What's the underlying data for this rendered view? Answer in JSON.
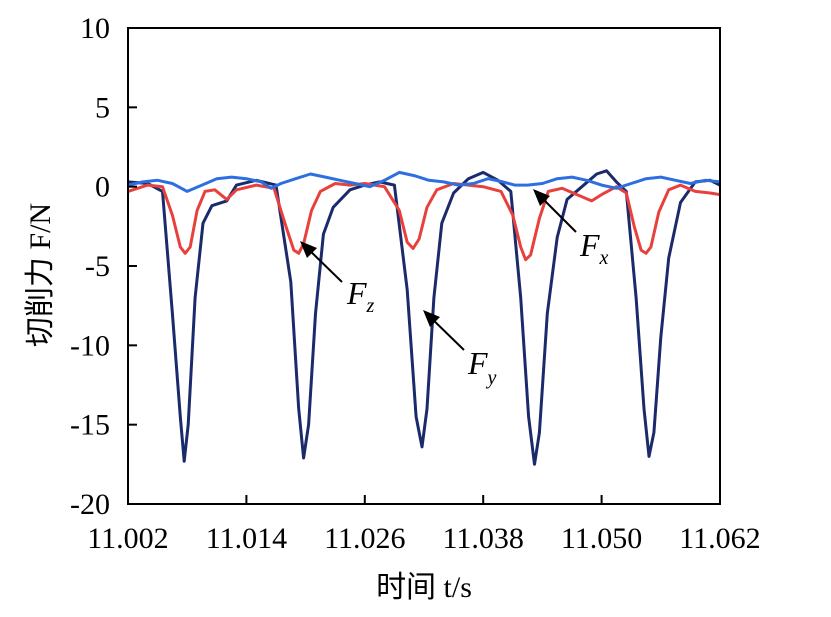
{
  "chart_data": {
    "type": "line",
    "xlabel": "时间 t/s",
    "ylabel": "切削力 F/N",
    "xlim": [
      11.002,
      11.062
    ],
    "ylim": [
      -20,
      10
    ],
    "x_ticks": [
      "11.002",
      "11.014",
      "11.026",
      "11.038",
      "11.050",
      "11.062"
    ],
    "y_ticks": [
      "10",
      "5",
      "0",
      "-5",
      "-10",
      "-15",
      "-20"
    ],
    "grid": false,
    "legend": "none",
    "series": [
      {
        "name": "Fy",
        "color": "#1b2a6b",
        "points": [
          [
            11.002,
            0.3
          ],
          [
            11.004,
            0.2
          ],
          [
            11.0055,
            -0.3
          ],
          [
            11.0065,
            -8.0
          ],
          [
            11.0073,
            -14.5
          ],
          [
            11.0077,
            -17.3
          ],
          [
            11.0081,
            -15.0
          ],
          [
            11.0088,
            -7.0
          ],
          [
            11.0096,
            -2.3
          ],
          [
            11.0105,
            -1.2
          ],
          [
            11.012,
            -0.9
          ],
          [
            11.013,
            0.1
          ],
          [
            11.015,
            0.4
          ],
          [
            11.017,
            0.1
          ],
          [
            11.0185,
            -6.0
          ],
          [
            11.0193,
            -14.0
          ],
          [
            11.0198,
            -17.1
          ],
          [
            11.0203,
            -15.0
          ],
          [
            11.021,
            -8.0
          ],
          [
            11.0218,
            -3.0
          ],
          [
            11.0228,
            -1.3
          ],
          [
            11.0245,
            -0.2
          ],
          [
            11.026,
            0.1
          ],
          [
            11.0275,
            0.3
          ],
          [
            11.029,
            0.1
          ],
          [
            11.0303,
            -6.5
          ],
          [
            11.0312,
            -14.5
          ],
          [
            11.0318,
            -16.4
          ],
          [
            11.0323,
            -14.0
          ],
          [
            11.033,
            -7.0
          ],
          [
            11.0338,
            -2.3
          ],
          [
            11.035,
            -0.4
          ],
          [
            11.0365,
            0.5
          ],
          [
            11.038,
            0.9
          ],
          [
            11.0395,
            0.4
          ],
          [
            11.0408,
            -0.3
          ],
          [
            11.0418,
            -7.0
          ],
          [
            11.0426,
            -14.5
          ],
          [
            11.0432,
            -17.5
          ],
          [
            11.0437,
            -15.5
          ],
          [
            11.0445,
            -8.0
          ],
          [
            11.0455,
            -3.2
          ],
          [
            11.0465,
            -0.8
          ],
          [
            11.048,
            0.0
          ],
          [
            11.0495,
            0.8
          ],
          [
            11.0505,
            1.0
          ],
          [
            11.0515,
            0.3
          ],
          [
            11.0525,
            -0.3
          ],
          [
            11.0535,
            -7.0
          ],
          [
            11.0543,
            -14.0
          ],
          [
            11.0548,
            -17.0
          ],
          [
            11.0553,
            -15.5
          ],
          [
            11.056,
            -9.5
          ],
          [
            11.0568,
            -4.5
          ],
          [
            11.058,
            -1.0
          ],
          [
            11.0595,
            0.3
          ],
          [
            11.061,
            0.4
          ],
          [
            11.062,
            0.1
          ]
        ]
      },
      {
        "name": "Fz",
        "color": "#e8413d",
        "points": [
          [
            11.002,
            -0.3
          ],
          [
            11.004,
            0.1
          ],
          [
            11.0055,
            0.0
          ],
          [
            11.0065,
            -1.8
          ],
          [
            11.0073,
            -3.8
          ],
          [
            11.0078,
            -4.2
          ],
          [
            11.0083,
            -3.8
          ],
          [
            11.009,
            -1.5
          ],
          [
            11.0098,
            -0.3
          ],
          [
            11.0108,
            -0.2
          ],
          [
            11.012,
            -0.8
          ],
          [
            11.013,
            -0.2
          ],
          [
            11.015,
            0.1
          ],
          [
            11.0168,
            -0.1
          ],
          [
            11.018,
            -2.5
          ],
          [
            11.0188,
            -4.0
          ],
          [
            11.0193,
            -4.2
          ],
          [
            11.0198,
            -3.6
          ],
          [
            11.0206,
            -1.5
          ],
          [
            11.0215,
            -0.3
          ],
          [
            11.023,
            0.2
          ],
          [
            11.0245,
            0.1
          ],
          [
            11.026,
            0.2
          ],
          [
            11.028,
            0.0
          ],
          [
            11.0295,
            -1.5
          ],
          [
            11.0303,
            -3.5
          ],
          [
            11.0309,
            -3.9
          ],
          [
            11.0315,
            -3.3
          ],
          [
            11.0323,
            -1.3
          ],
          [
            11.0333,
            -0.2
          ],
          [
            11.035,
            0.2
          ],
          [
            11.0365,
            0.1
          ],
          [
            11.038,
            0.0
          ],
          [
            11.0398,
            -0.3
          ],
          [
            11.041,
            -1.8
          ],
          [
            11.0418,
            -3.8
          ],
          [
            11.0423,
            -4.6
          ],
          [
            11.0428,
            -4.3
          ],
          [
            11.0437,
            -2.0
          ],
          [
            11.0446,
            -0.3
          ],
          [
            11.046,
            -0.1
          ],
          [
            11.0475,
            -0.5
          ],
          [
            11.049,
            -0.9
          ],
          [
            11.05,
            -0.5
          ],
          [
            11.0515,
            0.0
          ],
          [
            11.0525,
            -0.4
          ],
          [
            11.0533,
            -2.5
          ],
          [
            11.054,
            -4.0
          ],
          [
            11.0545,
            -4.2
          ],
          [
            11.055,
            -3.8
          ],
          [
            11.0558,
            -1.6
          ],
          [
            11.0568,
            -0.2
          ],
          [
            11.058,
            0.1
          ],
          [
            11.0595,
            -0.3
          ],
          [
            11.061,
            -0.4
          ],
          [
            11.062,
            -0.5
          ]
        ]
      },
      {
        "name": "Fx",
        "color": "#2e6fe0",
        "points": [
          [
            11.002,
            0.1
          ],
          [
            11.0035,
            0.3
          ],
          [
            11.005,
            0.4
          ],
          [
            11.0065,
            0.2
          ],
          [
            11.008,
            -0.3
          ],
          [
            11.0095,
            0.1
          ],
          [
            11.011,
            0.5
          ],
          [
            11.0125,
            0.6
          ],
          [
            11.014,
            0.5
          ],
          [
            11.0155,
            0.3
          ],
          [
            11.0165,
            -0.1
          ],
          [
            11.0175,
            0.2
          ],
          [
            11.019,
            0.5
          ],
          [
            11.0205,
            0.8
          ],
          [
            11.022,
            0.6
          ],
          [
            11.0235,
            0.4
          ],
          [
            11.025,
            0.2
          ],
          [
            11.0265,
            0.0
          ],
          [
            11.028,
            0.4
          ],
          [
            11.0295,
            0.9
          ],
          [
            11.031,
            0.7
          ],
          [
            11.0325,
            0.4
          ],
          [
            11.034,
            0.3
          ],
          [
            11.0355,
            0.1
          ],
          [
            11.037,
            0.2
          ],
          [
            11.0385,
            0.5
          ],
          [
            11.04,
            0.3
          ],
          [
            11.0412,
            0.1
          ],
          [
            11.0425,
            0.1
          ],
          [
            11.044,
            0.2
          ],
          [
            11.0455,
            0.5
          ],
          [
            11.047,
            0.6
          ],
          [
            11.0485,
            0.4
          ],
          [
            11.05,
            0.1
          ],
          [
            11.0515,
            -0.1
          ],
          [
            11.053,
            0.2
          ],
          [
            11.0545,
            0.5
          ],
          [
            11.056,
            0.6
          ],
          [
            11.0575,
            0.4
          ],
          [
            11.059,
            0.2
          ],
          [
            11.0605,
            0.4
          ],
          [
            11.062,
            0.3
          ]
        ]
      }
    ],
    "annotations": [
      {
        "series": "Fz",
        "main": "F",
        "sub": "z"
      },
      {
        "series": "Fy",
        "main": "F",
        "sub": "y"
      },
      {
        "series": "Fx",
        "main": "F",
        "sub": "x"
      }
    ]
  }
}
